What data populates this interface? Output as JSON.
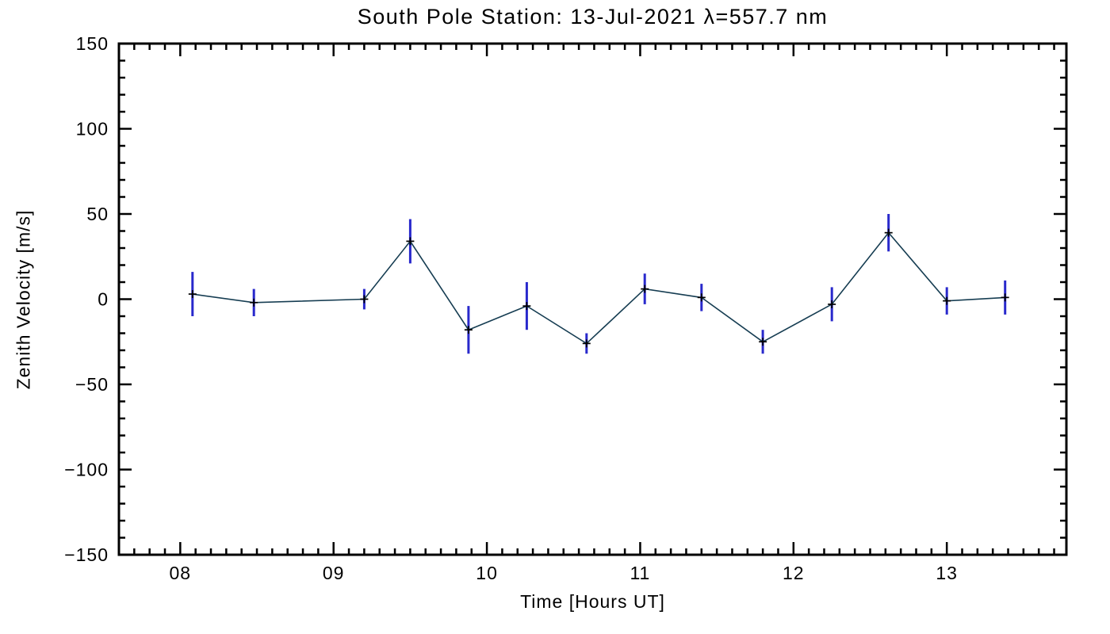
{
  "chart_data": {
    "type": "line",
    "title": "South Pole Station: 13-Jul-2021 λ=557.7 nm",
    "xlabel": "Time [Hours UT]",
    "ylabel": "Zenith Velocity [m/s]",
    "xlim": [
      7.6,
      13.78
    ],
    "ylim": [
      -150,
      150
    ],
    "x_major_ticks": [
      8,
      9,
      10,
      11,
      12,
      13
    ],
    "x_tick_labels": [
      "08",
      "09",
      "10",
      "11",
      "12",
      "13"
    ],
    "x_minor_per_major": 10,
    "y_major_ticks": [
      -150,
      -100,
      -50,
      0,
      50,
      100,
      150
    ],
    "y_tick_labels": [
      "−150",
      "−100",
      "−50",
      "0",
      "50",
      "100",
      "150"
    ],
    "y_minor_per_major": 5,
    "grid": false,
    "legend": false,
    "series": [
      {
        "name": "zenith-velocity",
        "x": [
          8.08,
          8.48,
          9.2,
          9.5,
          9.88,
          10.26,
          10.65,
          11.03,
          11.4,
          11.8,
          12.25,
          12.62,
          13.0,
          13.38
        ],
        "y": [
          3,
          -2,
          0,
          34,
          -18,
          -4,
          -26,
          6,
          1,
          -25,
          -3,
          39,
          -1,
          1
        ],
        "yerr": [
          13,
          8,
          6,
          13,
          14,
          14,
          6,
          9,
          8,
          7,
          10,
          11,
          8,
          10
        ],
        "line_color": "#163d52",
        "marker": "plus",
        "marker_color": "#000000",
        "error_color": "#2929cc"
      }
    ]
  }
}
